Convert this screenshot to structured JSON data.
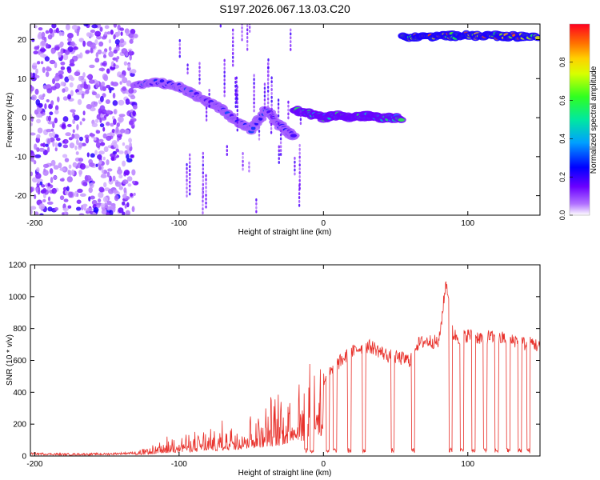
{
  "figure": {
    "title": "S197.2026.067.13.03.C20"
  },
  "chart_data": [
    {
      "type": "heatmap",
      "title": "S197.2026.067.13.03.C20",
      "xlabel": "Height of straight line (km)",
      "ylabel": "Frequency (Hz)",
      "xlim": [
        -203,
        150
      ],
      "ylim": [
        -25,
        24
      ],
      "x_ticks": [
        -200,
        -100,
        0,
        100
      ],
      "y_ticks": [
        20,
        10,
        0,
        -10,
        -20
      ],
      "grid": false,
      "colorbar": {
        "label": "Normalized spectral amplitude",
        "range": [
          0,
          1
        ],
        "ticks": [
          "0.0",
          "0.2",
          "0.4",
          "0.6",
          "0.8"
        ],
        "tick_values": [
          0,
          0.2,
          0.4,
          0.6,
          0.8
        ],
        "colormap": [
          "#ffffff",
          "#7a00ff",
          "#0000ff",
          "#00c0ff",
          "#00ff60",
          "#c8ff00",
          "#ffff00",
          "#ff8000",
          "#ff0000"
        ]
      },
      "features": [
        {
          "kind": "scatter_noise",
          "x_range": [
            -203,
            -130
          ],
          "freq_range": [
            -25,
            24
          ],
          "amplitude": 0.1
        },
        {
          "kind": "ridge",
          "x": [
            -130,
            -115,
            -100,
            -90,
            -80,
            -70,
            -60,
            -50,
            -40,
            -30,
            -20
          ],
          "freq": [
            8,
            9,
            8,
            6,
            4,
            2,
            -1,
            -3,
            2,
            -2,
            -5
          ],
          "amplitude": 0.3
        },
        {
          "kind": "ridge",
          "x": [
            -20,
            -10,
            0,
            10,
            20,
            30,
            40,
            55
          ],
          "freq": [
            2,
            1,
            0,
            0.5,
            0,
            0.5,
            0,
            0
          ],
          "amplitude": 0.6
        },
        {
          "kind": "ridge",
          "x": [
            55,
            70,
            85,
            100,
            115,
            130,
            150
          ],
          "freq": [
            20.5,
            20.8,
            21,
            21,
            21,
            20.8,
            21
          ],
          "amplitude": 0.9
        }
      ]
    },
    {
      "type": "line",
      "xlabel": "Height of straight line (km)",
      "ylabel": "SNR (10 * v/v)",
      "xlim": [
        -203,
        150
      ],
      "ylim": [
        0,
        1200
      ],
      "x_ticks": [
        -200,
        -100,
        0,
        100
      ],
      "y_ticks": [
        0,
        200,
        400,
        600,
        800,
        1000,
        1200
      ],
      "grid": false,
      "color": "#e8302a",
      "series": [
        {
          "x": [
            -203,
            -180,
            -150,
            -130,
            -120,
            -110,
            -100,
            -90,
            -80,
            -70,
            -60,
            -50,
            -40,
            -30,
            -25,
            -20,
            -15,
            -10,
            -5,
            0,
            5,
            10,
            15,
            20,
            25,
            30,
            35,
            40,
            45,
            50,
            55,
            60,
            63,
            65,
            70,
            75,
            80,
            85,
            90,
            95,
            100,
            105,
            110,
            115,
            120,
            125,
            130,
            135,
            140,
            145,
            150
          ],
          "values": [
            15,
            10,
            12,
            20,
            40,
            70,
            90,
            100,
            110,
            130,
            160,
            190,
            220,
            260,
            300,
            340,
            380,
            400,
            440,
            480,
            520,
            580,
            620,
            650,
            680,
            690,
            680,
            650,
            630,
            620,
            610,
            600,
            680,
            700,
            720,
            720,
            710,
            1100,
            760,
            740,
            760,
            750,
            740,
            750,
            730,
            740,
            720,
            730,
            700,
            710,
            680
          ]
        }
      ],
      "dropouts_x": [
        -12,
        -8,
        3,
        8,
        18,
        28,
        48,
        62,
        88,
        96,
        104,
        112,
        120,
        128,
        136,
        142
      ]
    }
  ]
}
